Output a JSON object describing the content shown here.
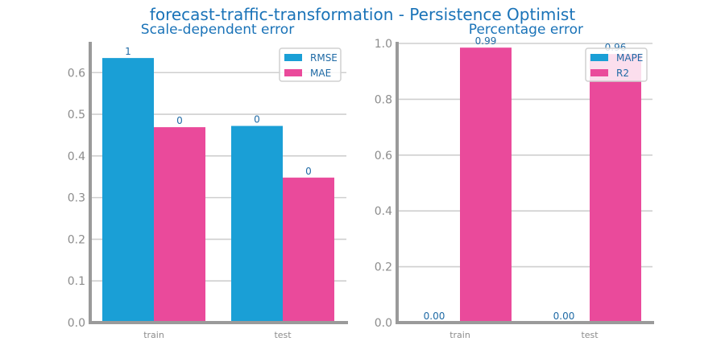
{
  "figure": {
    "title": "forecast-traffic-transformation - Persistence Optimist"
  },
  "colors": {
    "blue": "#1a9fd6",
    "pink": "#ea4a9b",
    "text": "#1f6aa5",
    "axis": "#9a9a9a",
    "grid": "#cfcfcf"
  },
  "chart_data": [
    {
      "type": "bar",
      "title": "Scale-dependent error",
      "categories": [
        "train",
        "test"
      ],
      "series": [
        {
          "name": "RMSE",
          "values": [
            0.635,
            0.472
          ],
          "labels": [
            "1",
            "0"
          ]
        },
        {
          "name": "MAE",
          "values": [
            0.469,
            0.348
          ],
          "labels": [
            "0",
            "0"
          ]
        }
      ],
      "ylim": [
        0,
        0.67
      ],
      "yticks": [
        "0.0",
        "0.1",
        "0.2",
        "0.3",
        "0.4",
        "0.5",
        "0.6"
      ],
      "grid": true,
      "legend": "top-right"
    },
    {
      "type": "bar",
      "title": "Percentage error",
      "categories": [
        "train",
        "test"
      ],
      "series": [
        {
          "name": "MAPE",
          "values": [
            0.0,
            0.0
          ],
          "labels": [
            "0.00",
            "0.00"
          ]
        },
        {
          "name": "R2",
          "values": [
            0.985,
            0.962
          ],
          "labels": [
            "0.99",
            "0.96"
          ]
        }
      ],
      "ylim": [
        0,
        1.0
      ],
      "yticks": [
        "0.0",
        "0.2",
        "0.4",
        "0.6",
        "0.8",
        "1.0"
      ],
      "grid": true,
      "legend": "top-right"
    }
  ]
}
